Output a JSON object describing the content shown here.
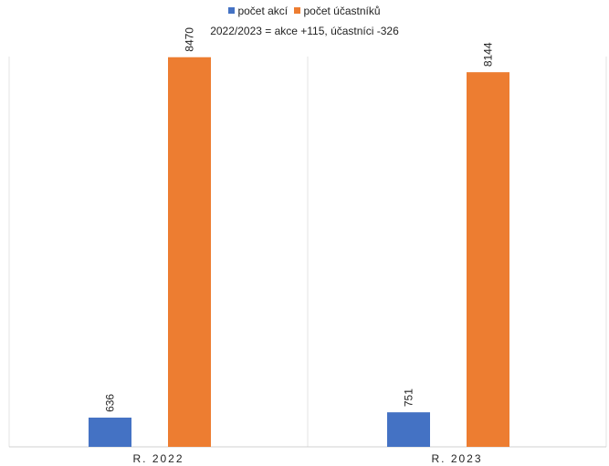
{
  "chart_data": {
    "type": "bar",
    "title": "",
    "subtitle": "2022/2023 = akce +115, účastníci -326",
    "categories": [
      "R. 2022",
      "R. 2023"
    ],
    "series": [
      {
        "name": "počet akcí",
        "values": [
          636,
          751
        ],
        "color": "#4472c4"
      },
      {
        "name": "počet účastníků",
        "values": [
          8470,
          8144
        ],
        "color": "#ed7d31"
      }
    ],
    "ylim": [
      0,
      9000
    ],
    "xlabel": "",
    "ylabel": "",
    "legend": "top-center",
    "grid": false,
    "data_labels": true
  }
}
